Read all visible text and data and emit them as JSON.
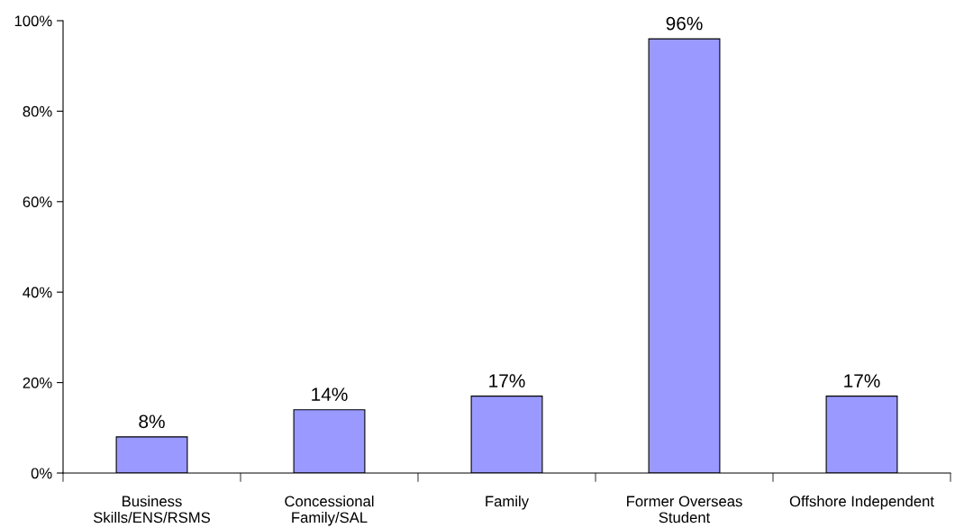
{
  "chart_data": {
    "type": "bar",
    "categories": [
      "Business\nSkills/ENS/RSMS",
      "Concessional\nFamily/SAL",
      "Family",
      "Former Overseas\nStudent",
      "Offshore Independent"
    ],
    "values": [
      8,
      14,
      17,
      96,
      17
    ],
    "value_labels": [
      "8%",
      "14%",
      "17%",
      "96%",
      "17%"
    ],
    "color": "#9999ff",
    "ylim": [
      0,
      100
    ],
    "yticks": [
      {
        "value": 0,
        "label": "0%"
      },
      {
        "value": 20,
        "label": "20%"
      },
      {
        "value": 40,
        "label": "40%"
      },
      {
        "value": 60,
        "label": "60%"
      },
      {
        "value": 80,
        "label": "80%"
      },
      {
        "value": 100,
        "label": "100%"
      }
    ],
    "grid": false,
    "legend": false
  }
}
